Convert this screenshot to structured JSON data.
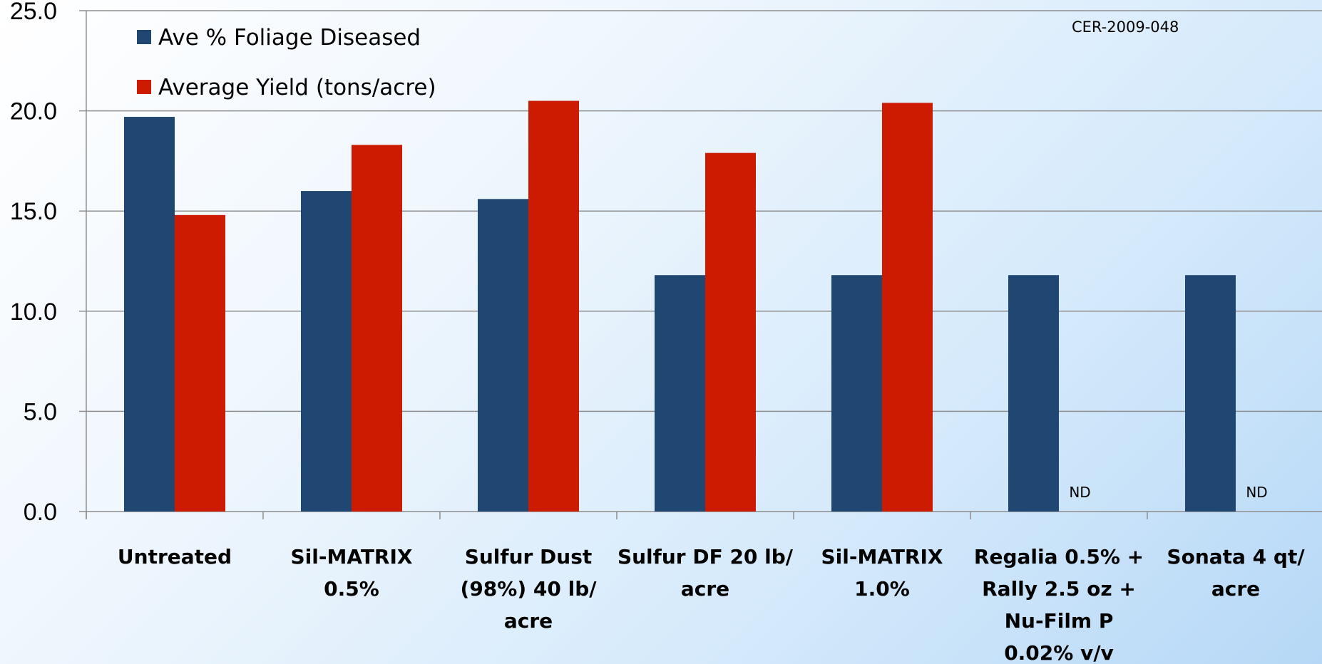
{
  "chart_data": {
    "type": "bar",
    "categories": [
      [
        "Untreated"
      ],
      [
        "Sil-MATRIX",
        "0.5%"
      ],
      [
        "Sulfur Dust",
        "(98%) 40 lb/",
        "acre"
      ],
      [
        "Sulfur DF 20 lb/",
        "acre"
      ],
      [
        "Sil-MATRIX",
        "1.0%"
      ],
      [
        "Regalia 0.5% +",
        "Rally 2.5 oz +",
        "Nu-Film P",
        "0.02% v/v"
      ],
      [
        "Sonata 4 qt/",
        "acre"
      ]
    ],
    "series": [
      {
        "name": "Ave % Foliage Diseased",
        "color": "#1f4771",
        "values": [
          19.7,
          16.0,
          15.6,
          11.8,
          11.8,
          11.8,
          11.8
        ]
      },
      {
        "name": "Average Yield (tons/acre)",
        "color": "#cc1b00",
        "values": [
          14.8,
          18.3,
          20.5,
          17.9,
          20.4,
          null,
          null
        ]
      }
    ],
    "missing_label": "ND",
    "ylim": [
      0,
      25
    ],
    "yticks": [
      "0.0",
      "5.0",
      "10.0",
      "15.0",
      "20.0",
      "25.0"
    ],
    "grid": true,
    "legend_position": "top-left",
    "annotation": "CER-2009-048",
    "title": "",
    "xlabel": "",
    "ylabel": ""
  }
}
